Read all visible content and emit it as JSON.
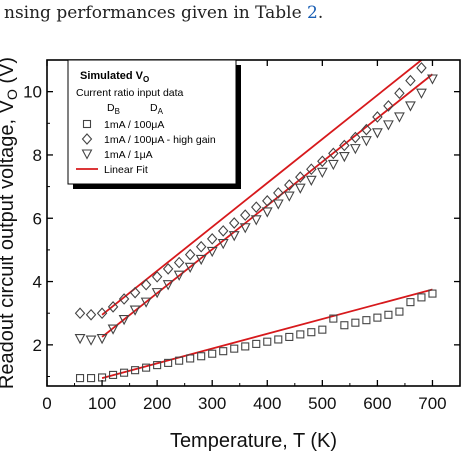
{
  "caption": {
    "text_before": "nsing performances given in Table ",
    "link_text": "2",
    "text_after": "."
  },
  "colors": {
    "marker": "#444444",
    "fit_line": "#d7191c",
    "axis": "#000000"
  },
  "legend": {
    "title_main": "Simulated V",
    "title_sub": "O",
    "subtitle": "Current ratio input data",
    "col1_main": "D",
    "col1_sub": "B",
    "col2_main": "D",
    "col2_sub": "A",
    "entries": [
      {
        "marker": "square",
        "label": "1mA / 100μA"
      },
      {
        "marker": "diamond",
        "label": "1mA / 100μA - high gain"
      },
      {
        "marker": "triangle-down",
        "label": "1mA / 1μA"
      },
      {
        "marker": "line",
        "label": "Linear Fit"
      }
    ]
  },
  "chart_data": {
    "type": "scatter",
    "xlabel": "Temperature, T (K)",
    "ylabel": "Readout circuit output voltage, V",
    "ylabel_sub": "O",
    "ylabel_unit": " (V)",
    "xlim": [
      0,
      750
    ],
    "ylim": [
      0.7,
      11.0
    ],
    "xticks": [
      0,
      100,
      200,
      300,
      400,
      500,
      600,
      700
    ],
    "yticks": [
      2,
      4,
      6,
      8,
      10
    ],
    "grid": false,
    "legend_position": "top-left",
    "series": [
      {
        "name": "1mA / 100μA",
        "marker": "square",
        "x": [
          60,
          80,
          100,
          120,
          140,
          160,
          180,
          200,
          220,
          240,
          260,
          280,
          300,
          320,
          340,
          360,
          380,
          400,
          420,
          440,
          460,
          480,
          500,
          520,
          540,
          560,
          580,
          600,
          620,
          640,
          660,
          680,
          700
        ],
        "y": [
          0.95,
          0.95,
          0.97,
          1.05,
          1.12,
          1.2,
          1.28,
          1.36,
          1.43,
          1.5,
          1.57,
          1.64,
          1.72,
          1.8,
          1.88,
          1.95,
          2.03,
          2.1,
          2.17,
          2.25,
          2.33,
          2.4,
          2.48,
          2.83,
          2.62,
          2.7,
          2.78,
          2.86,
          2.95,
          3.05,
          3.35,
          3.5,
          3.62
        ]
      },
      {
        "name": "1mA / 100μA - high gain",
        "marker": "diamond",
        "x": [
          60,
          80,
          100,
          120,
          140,
          160,
          180,
          200,
          220,
          240,
          260,
          280,
          300,
          320,
          340,
          360,
          380,
          400,
          420,
          440,
          460,
          480,
          500,
          520,
          540,
          560,
          580,
          600,
          620,
          640,
          660,
          680
        ],
        "y": [
          3.0,
          2.95,
          3.0,
          3.2,
          3.45,
          3.65,
          3.9,
          4.15,
          4.4,
          4.6,
          4.85,
          5.1,
          5.35,
          5.6,
          5.85,
          6.1,
          6.35,
          6.55,
          6.8,
          7.05,
          7.3,
          7.55,
          7.8,
          8.05,
          8.3,
          8.55,
          8.8,
          9.2,
          9.55,
          9.95,
          10.35,
          10.75
        ]
      },
      {
        "name": "1mA / 1μA",
        "marker": "triangle-down",
        "x": [
          60,
          80,
          100,
          120,
          140,
          160,
          180,
          200,
          220,
          240,
          260,
          280,
          300,
          320,
          340,
          360,
          380,
          400,
          420,
          440,
          460,
          480,
          500,
          520,
          540,
          560,
          580,
          600,
          620,
          640,
          660,
          680,
          700
        ],
        "y": [
          2.2,
          2.15,
          2.2,
          2.5,
          2.8,
          3.1,
          3.35,
          3.65,
          3.9,
          4.2,
          4.45,
          4.7,
          4.95,
          5.2,
          5.45,
          5.7,
          5.95,
          6.2,
          6.45,
          6.7,
          6.95,
          7.2,
          7.45,
          7.7,
          7.95,
          8.2,
          8.45,
          8.7,
          8.95,
          9.2,
          9.55,
          9.95,
          10.4
        ]
      }
    ],
    "fits": [
      {
        "name": "Linear Fit",
        "x": [
          100,
          700
        ],
        "y": [
          0.95,
          3.75
        ]
      },
      {
        "name": "Linear Fit",
        "x": [
          100,
          680
        ],
        "y": [
          2.95,
          11.0
        ]
      },
      {
        "name": "Linear Fit",
        "x": [
          100,
          700
        ],
        "y": [
          2.25,
          10.55
        ]
      }
    ]
  }
}
